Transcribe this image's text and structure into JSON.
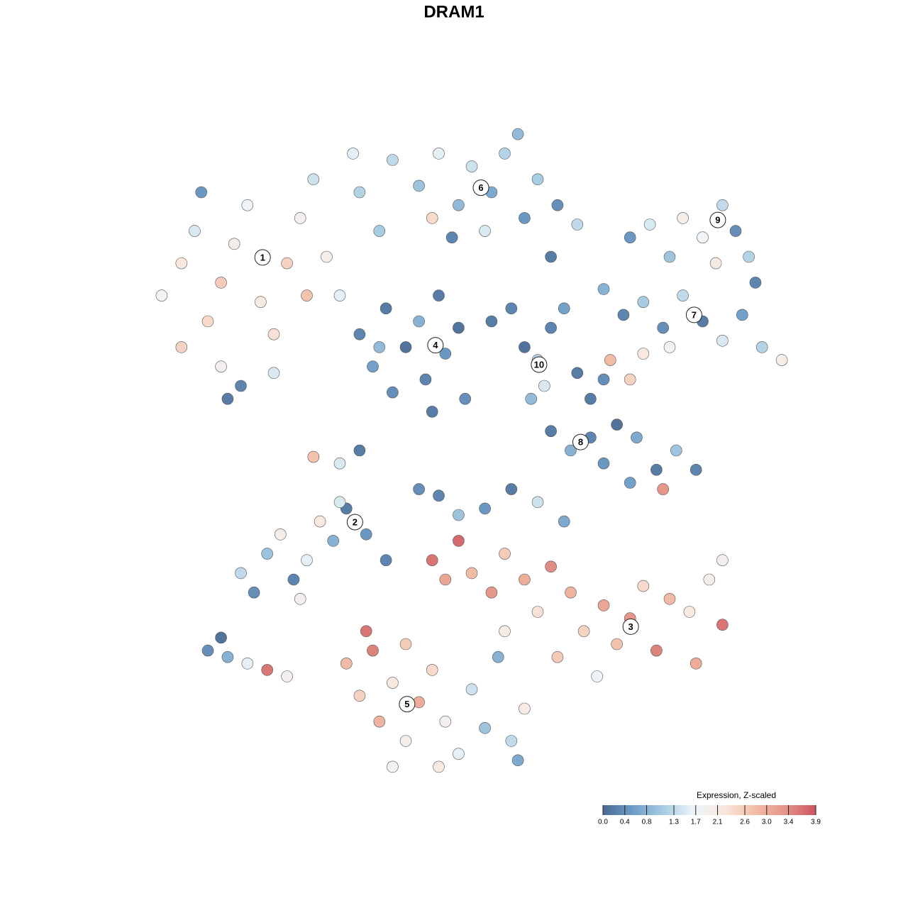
{
  "chart_data": {
    "type": "scatter",
    "title": "DRAM1",
    "xlim": [
      0,
      100
    ],
    "ylim": [
      0,
      100
    ],
    "x": [
      3,
      6,
      8,
      10,
      12,
      14,
      16,
      18,
      20,
      22,
      24,
      26,
      28,
      30,
      33,
      36,
      12,
      15,
      13,
      20,
      9,
      25,
      6,
      32,
      38,
      42,
      45,
      48,
      50,
      53,
      55,
      58,
      60,
      63,
      66,
      47,
      52,
      57,
      44,
      62,
      33,
      35,
      37,
      38,
      40,
      42,
      43,
      45,
      46,
      48,
      49,
      44,
      36,
      53,
      56,
      58,
      60,
      62,
      64,
      61,
      66,
      59,
      70,
      73,
      76,
      79,
      82,
      85,
      88,
      91,
      94,
      97,
      71,
      76,
      74,
      80,
      74,
      77,
      80,
      82,
      85,
      88,
      90,
      92,
      87,
      93,
      62,
      65,
      68,
      70,
      72,
      75,
      78,
      81,
      84,
      68,
      70,
      79,
      74,
      15,
      17,
      19,
      21,
      23,
      25,
      27,
      29,
      31,
      34,
      37,
      24,
      30,
      10,
      13,
      16,
      19,
      22,
      12,
      42,
      45,
      48,
      52,
      56,
      60,
      64,
      44,
      46,
      48,
      50,
      53,
      55,
      58,
      60,
      62,
      65,
      67,
      70,
      72,
      74,
      76,
      78,
      80,
      83,
      86,
      88,
      84,
      63,
      69,
      55,
      88,
      31,
      33,
      35,
      36,
      38,
      40,
      42,
      44,
      46,
      48,
      50,
      52,
      54,
      56,
      58,
      34,
      40,
      45,
      38,
      57,
      26,
      33,
      30
    ],
    "y": [
      74,
      79,
      84,
      70,
      76,
      82,
      88,
      73,
      68,
      79,
      86,
      92,
      80,
      74,
      90,
      84,
      63,
      60,
      58,
      62,
      90,
      74,
      66,
      96,
      95,
      91,
      96,
      88,
      94,
      90,
      96,
      86,
      92,
      88,
      85,
      83,
      84,
      99,
      86,
      80,
      68,
      63,
      72,
      59,
      66,
      70,
      61,
      74,
      65,
      69,
      58,
      56,
      66,
      70,
      72,
      66,
      64,
      69,
      72,
      60,
      62,
      58,
      75,
      71,
      73,
      69,
      74,
      70,
      67,
      71,
      66,
      64,
      64,
      65,
      61,
      66,
      83,
      85,
      80,
      86,
      83,
      88,
      84,
      80,
      79,
      76,
      53,
      50,
      52,
      48,
      54,
      52,
      47,
      50,
      47,
      58,
      61,
      44,
      45,
      31,
      28,
      34,
      37,
      30,
      33,
      39,
      36,
      41,
      37,
      33,
      27,
      42,
      19,
      18,
      17,
      16,
      15,
      21,
      44,
      43,
      40,
      41,
      44,
      42,
      39,
      33,
      30,
      36,
      31,
      28,
      34,
      30,
      25,
      32,
      28,
      22,
      26,
      20,
      24,
      29,
      19,
      27,
      25,
      30,
      33,
      17,
      18,
      15,
      22,
      23,
      17,
      12,
      19,
      8,
      14,
      5,
      11,
      16,
      8,
      3,
      13,
      7,
      18,
      5,
      10,
      22,
      20,
      1,
      1,
      2,
      49,
      50,
      48
    ],
    "values": [
      1.8,
      2.2,
      1.5,
      2.4,
      2.6,
      2.0,
      1.7,
      2.1,
      2.3,
      2.5,
      1.9,
      1.4,
      2.0,
      1.6,
      1.2,
      1.1,
      1.9,
      0.3,
      0.2,
      1.5,
      0.5,
      2.7,
      2.5,
      1.6,
      1.3,
      1.0,
      1.6,
      0.9,
      1.4,
      0.7,
      1.2,
      0.5,
      1.1,
      0.4,
      1.3,
      0.3,
      1.5,
      0.9,
      2.4,
      0.2,
      0.3,
      0.6,
      0.2,
      0.4,
      0.1,
      0.8,
      0.3,
      0.2,
      0.5,
      0.1,
      0.4,
      0.2,
      0.9,
      0.2,
      0.3,
      0.1,
      1.2,
      0.3,
      0.6,
      1.5,
      0.2,
      0.9,
      0.8,
      0.3,
      1.1,
      0.4,
      1.3,
      0.2,
      1.5,
      0.6,
      1.2,
      2.0,
      2.8,
      2.2,
      2.5,
      1.8,
      0.5,
      1.5,
      1.0,
      2.0,
      1.7,
      1.3,
      0.4,
      1.2,
      2.1,
      0.3,
      0.2,
      0.8,
      0.3,
      0.5,
      0.1,
      0.7,
      0.2,
      1.0,
      0.3,
      0.2,
      0.4,
      3.3,
      0.6,
      1.3,
      0.4,
      1.0,
      2.0,
      0.3,
      1.6,
      2.2,
      0.8,
      0.2,
      0.5,
      0.3,
      1.9,
      1.5,
      0.4,
      0.8,
      1.6,
      3.6,
      1.9,
      0.1,
      0.4,
      0.3,
      1.0,
      0.5,
      0.2,
      1.4,
      0.7,
      3.6,
      3.1,
      3.7,
      2.8,
      3.3,
      2.6,
      3.0,
      2.3,
      3.4,
      2.9,
      2.5,
      3.1,
      2.7,
      3.3,
      2.4,
      3.5,
      2.8,
      2.2,
      2.0,
      1.9,
      3.0,
      2.6,
      1.7,
      2.1,
      3.6,
      2.8,
      2.5,
      3.5,
      2.9,
      2.2,
      2.0,
      3.0,
      2.4,
      1.9,
      1.6,
      1.4,
      1.0,
      0.8,
      1.3,
      2.1,
      3.6,
      2.6,
      2.1,
      1.8,
      0.7,
      2.7,
      0.2,
      1.5
    ],
    "clusters": {
      "labels": [
        "1",
        "2",
        "3",
        "4",
        "5",
        "6",
        "7",
        "8",
        "9",
        "10"
      ],
      "x": [
        18.3,
        32.3,
        74.1,
        44.5,
        40.2,
        51.4,
        83.7,
        66.5,
        87.3,
        60.2
      ],
      "y": [
        79.9,
        38.9,
        22.7,
        66.3,
        10.7,
        90.7,
        71.0,
        51.3,
        85.7,
        63.3
      ]
    },
    "colorbar": {
      "title": "Expression, Z-scaled",
      "lim": [
        0,
        3.9
      ],
      "ticks": [
        {
          "value": 0,
          "label": "0.0"
        },
        0.4,
        0.8,
        1.3,
        1.7,
        2.1,
        2.6,
        {
          "value": 3,
          "label": "3.0"
        },
        3.4,
        3.9
      ],
      "colors": [
        "#4a6a92",
        "#6f9dc8",
        "#a9cde3",
        "#eef5f9",
        "#f9e7dd",
        "#f2bca6",
        "#e59488",
        "#cc535f"
      ]
    }
  }
}
